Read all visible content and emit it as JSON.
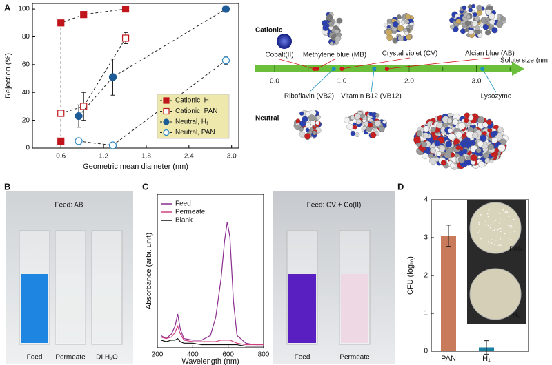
{
  "panel_labels": [
    "A",
    "B",
    "C",
    "D"
  ],
  "chart_data": [
    {
      "type": "line",
      "xlabel": "Geometric mean diameter (nm)",
      "ylabel": "Rejection (%)",
      "xlim": [
        0.2,
        3.1
      ],
      "xticks": [
        0.6,
        1.2,
        1.8,
        2.4,
        {
          "value": 3,
          "label": "3.0"
        }
      ],
      "ylim": [
        0,
        104
      ],
      "yticks": [
        0,
        20,
        40,
        60,
        80,
        100
      ],
      "legend": "lower right",
      "series": [
        {
          "name": "Cationic, H₁",
          "color": "#c0151b",
          "marker": "filled",
          "x": [
            0.6,
            0.6,
            0.92,
            1.51
          ],
          "values": [
            5,
            90,
            96,
            100
          ],
          "errors": [
            null,
            null,
            null,
            null
          ]
        },
        {
          "name": "Cationic, PAN",
          "color": "#c0151b",
          "marker": "open",
          "x": [
            0.6,
            0.92,
            1.51
          ],
          "values": [
            25,
            30,
            79
          ],
          "errors": [
            null,
            10,
            4
          ]
        },
        {
          "name": "Neutral, H₁",
          "color": "#1d5c96",
          "marker": "filled",
          "x": [
            0.85,
            1.33,
            2.92
          ],
          "values": [
            23,
            51,
            100
          ],
          "errors": [
            8,
            13,
            null
          ]
        },
        {
          "name": "Neutral, PAN",
          "color": "#2b86c6",
          "marker": "open",
          "x": [
            0.85,
            1.33,
            2.92
          ],
          "values": [
            5,
            2,
            63
          ],
          "errors": [
            null,
            null,
            3
          ]
        }
      ]
    },
    {
      "type": "line",
      "xlabel": "Wavelength (nm)",
      "ylabel": "Absorbance (arbi. unit)",
      "xlim": [
        200,
        800
      ],
      "xticks": [
        200,
        400,
        600,
        800
      ],
      "ylim": [
        0,
        1
      ],
      "legend": "upper left",
      "x": [
        220,
        250,
        280,
        300,
        315,
        330,
        350,
        400,
        450,
        500,
        530,
        560,
        580,
        595,
        610,
        630,
        650,
        700,
        750,
        800
      ],
      "series": [
        {
          "name": "Feed",
          "color": "#8b2c8f",
          "values": [
            0.08,
            0.06,
            0.09,
            0.14,
            0.22,
            0.12,
            0.06,
            0.05,
            0.05,
            0.08,
            0.2,
            0.45,
            0.7,
            0.82,
            0.72,
            0.3,
            0.08,
            0.03,
            0.02,
            0.02
          ]
        },
        {
          "name": "Permeate",
          "color": "#d0407e",
          "values": [
            0.07,
            0.06,
            0.07,
            0.1,
            0.14,
            0.09,
            0.05,
            0.04,
            0.04,
            0.04,
            0.04,
            0.05,
            0.05,
            0.05,
            0.05,
            0.04,
            0.03,
            0.02,
            0.02,
            0.02
          ]
        },
        {
          "name": "Blank",
          "color": "#111111",
          "values": [
            0.05,
            0.04,
            0.05,
            0.05,
            0.06,
            0.04,
            0.03,
            0.03,
            0.02,
            0.02,
            0.02,
            0.02,
            0.02,
            0.02,
            0.02,
            0.02,
            0.02,
            0.01,
            0.01,
            0.01
          ]
        }
      ]
    },
    {
      "type": "bar",
      "ylabel": "CFU (log₁₀)",
      "categories": [
        "PAN",
        "H₁"
      ],
      "values": [
        3.05,
        0.1
      ],
      "errors": [
        0.28,
        0.18
      ],
      "colors": [
        "#c87a5a",
        "#1a7fa0"
      ],
      "ylim": [
        0,
        4
      ],
      "yticks": [
        0,
        1,
        2,
        3,
        4
      ]
    }
  ],
  "solute_scale": {
    "title": "Solute size (nm",
    "cationic": "Cationic",
    "neutral": "Neutral",
    "xlim": [
      -0.3,
      3.7
    ],
    "xticks": [
      {
        "value": 0,
        "label": "0.0"
      },
      {
        "value": 1,
        "label": "1.0"
      },
      {
        "value": 2,
        "label": "2.0"
      },
      {
        "value": 3,
        "label": "3.0"
      }
    ],
    "molecules": [
      {
        "name": "Cobalt(II)",
        "group": "cationic",
        "size": 0.59
      },
      {
        "name": "Methylene blue (MB)",
        "group": "cationic",
        "size": 0.63
      },
      {
        "name": "Crystal violet (CV)",
        "group": "cationic",
        "size": 1.0
      },
      {
        "name": "Alcian blue (AB)",
        "group": "cationic",
        "size": 1.67
      },
      {
        "name": "Riboflavin (VB2)",
        "group": "neutral",
        "size": 0.88
      },
      {
        "name": "Vitamin B12 (VB12)",
        "group": "neutral",
        "size": 1.48
      },
      {
        "name": "Lysozyme",
        "group": "neutral",
        "size": 3.09
      }
    ]
  },
  "photo_b": {
    "title": "Feed: AB",
    "labels": [
      "Feed",
      "Permeate",
      "DI H₂O"
    ]
  },
  "photo_c": {
    "title": "Feed: CV + Co(II)",
    "labels": [
      "Feed",
      "Permeate"
    ]
  },
  "photo_d": {
    "labels": [
      "PAN",
      "H₁"
    ]
  }
}
